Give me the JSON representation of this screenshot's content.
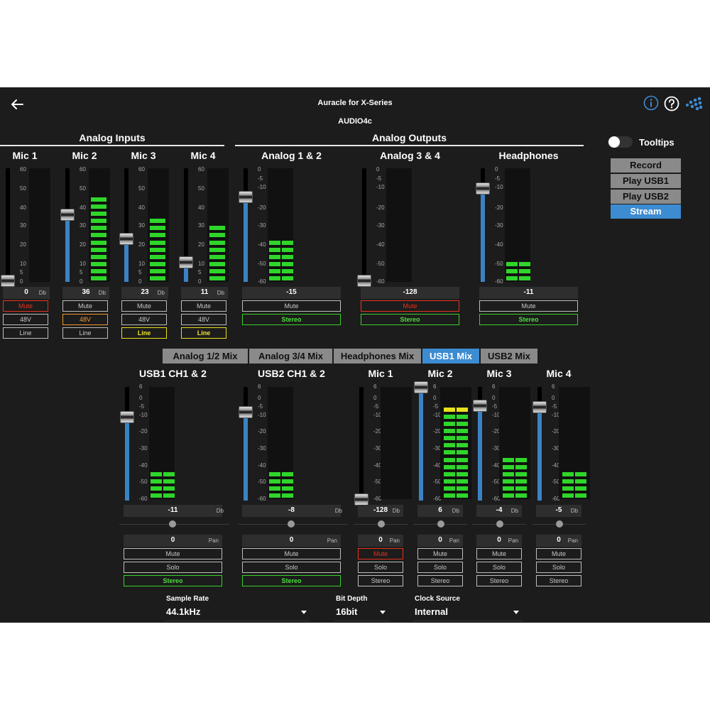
{
  "header": {
    "title": "Auracle for X-Series",
    "subtitle": "AUDIO4c"
  },
  "sections": {
    "inputs": "Analog Inputs",
    "outputs": "Analog Outputs"
  },
  "tooltips": {
    "label": "Tooltips",
    "on": false
  },
  "sources": [
    {
      "label": "Record",
      "active": false
    },
    {
      "label": "Play USB1",
      "active": false
    },
    {
      "label": "Play USB2",
      "active": false
    },
    {
      "label": "Stream",
      "active": true
    }
  ],
  "scales": {
    "input": [
      "60",
      "50",
      "40",
      "30",
      "20",
      "10",
      "5",
      "0"
    ],
    "output": [
      "0",
      "-5",
      "-10",
      "-20",
      "-30",
      "-40",
      "-50",
      "-60"
    ],
    "mix": [
      "6",
      "0",
      "-5",
      "-10",
      "-20",
      "-30",
      "-40",
      "-50",
      "-60"
    ]
  },
  "unit_db": "Db",
  "unit_pan": "Pan",
  "inputs": [
    {
      "name": "Mic 1",
      "value": "0",
      "gain": 0,
      "meter_db": 0,
      "mute": {
        "label": "Mute",
        "on": true
      },
      "phantom": {
        "label": "48V",
        "on": false
      },
      "line": {
        "label": "Line",
        "on": false
      }
    },
    {
      "name": "Mic 2",
      "value": "36",
      "gain": 36,
      "meter_db": 47,
      "mute": {
        "label": "Mute",
        "on": false
      },
      "phantom": {
        "label": "48V",
        "on": true
      },
      "line": {
        "label": "Line",
        "on": false
      }
    },
    {
      "name": "Mic 3",
      "value": "23",
      "gain": 23,
      "meter_db": 38,
      "mute": {
        "label": "Mute",
        "on": false
      },
      "phantom": {
        "label": "48V",
        "on": false
      },
      "line": {
        "label": "Line",
        "on": true
      }
    },
    {
      "name": "Mic 4",
      "value": "11",
      "gain": 11,
      "meter_db": 35,
      "mute": {
        "label": "Mute",
        "on": false
      },
      "phantom": {
        "label": "48V",
        "on": false
      },
      "line": {
        "label": "Line",
        "on": true
      }
    }
  ],
  "outputs": [
    {
      "name": "Analog 1 & 2",
      "value": "-15",
      "level": -15,
      "meter_db": -33,
      "mute": {
        "label": "Mute",
        "on": false
      },
      "stereo": {
        "label": "Stereo",
        "on": true
      }
    },
    {
      "name": "Analog 3 & 4",
      "value": "-128",
      "level": -128,
      "meter_db": -128,
      "mute": {
        "label": "Mute",
        "on": true
      },
      "stereo": {
        "label": "Stereo",
        "on": true
      }
    },
    {
      "name": "Headphones",
      "value": "-11",
      "level": -11,
      "meter_db": -45,
      "mute": {
        "label": "Mute",
        "on": false
      },
      "stereo": {
        "label": "Stereo",
        "on": true
      }
    }
  ],
  "mix_tabs": [
    {
      "label": "Analog 1/2 Mix",
      "active": false
    },
    {
      "label": "Analog 3/4 Mix",
      "active": false
    },
    {
      "label": "Headphones Mix",
      "active": false
    },
    {
      "label": "USB1 Mix",
      "active": true
    },
    {
      "label": "USB2 Mix",
      "active": false
    }
  ],
  "mix_channels": [
    {
      "name": "USB1 CH1 & 2",
      "value": "-11",
      "level": -11,
      "meter_db": -39,
      "pan": "0",
      "mute": {
        "label": "Mute",
        "on": false
      },
      "solo": {
        "label": "Solo",
        "on": false
      },
      "stereo": {
        "label": "Stereo",
        "on": true
      }
    },
    {
      "name": "USB2 CH1 & 2",
      "value": "-8",
      "level": -8,
      "meter_db": -39,
      "pan": "0",
      "mute": {
        "label": "Mute",
        "on": false
      },
      "solo": {
        "label": "Solo",
        "on": false
      },
      "stereo": {
        "label": "Stereo",
        "on": true
      }
    },
    {
      "name": "Mic 1",
      "value": "-128",
      "level": -128,
      "meter_db": -128,
      "pan": "0",
      "mute": {
        "label": "Mute",
        "on": true
      },
      "solo": {
        "label": "Solo",
        "on": false
      },
      "stereo": {
        "label": "Stereo",
        "on": false
      }
    },
    {
      "name": "Mic 2",
      "value": "6",
      "level": 6,
      "meter_db": -3,
      "pan": "0",
      "mute": {
        "label": "Mute",
        "on": false
      },
      "solo": {
        "label": "Solo",
        "on": false
      },
      "stereo": {
        "label": "Stereo",
        "on": false
      }
    },
    {
      "name": "Mic 3",
      "value": "-4",
      "level": -4,
      "meter_db": -30,
      "pan": "0",
      "mute": {
        "label": "Mute",
        "on": false
      },
      "solo": {
        "label": "Solo",
        "on": false
      },
      "stereo": {
        "label": "Stereo",
        "on": false
      }
    },
    {
      "name": "Mic 4",
      "value": "-5",
      "level": -5,
      "meter_db": -42,
      "pan": "0",
      "mute": {
        "label": "Mute",
        "on": false
      },
      "solo": {
        "label": "Solo",
        "on": false
      },
      "stereo": {
        "label": "Stereo",
        "on": false
      }
    }
  ],
  "settings": {
    "sample_rate": {
      "label": "Sample Rate",
      "value": "44.1kHz"
    },
    "bit_depth": {
      "label": "Bit Depth",
      "value": "16bit"
    },
    "clock_source": {
      "label": "Clock Source",
      "value": "Internal"
    }
  },
  "colors": {
    "accent": "#3d8bd1",
    "meter_green": "#2fd62a",
    "meter_yellow": "#e8e01c",
    "mute_red": "#e8321f",
    "phantom_orange": "#f29a2e"
  },
  "icons": [
    "back-arrow-icon",
    "info-icon",
    "help-icon",
    "brand-logo-icon"
  ]
}
